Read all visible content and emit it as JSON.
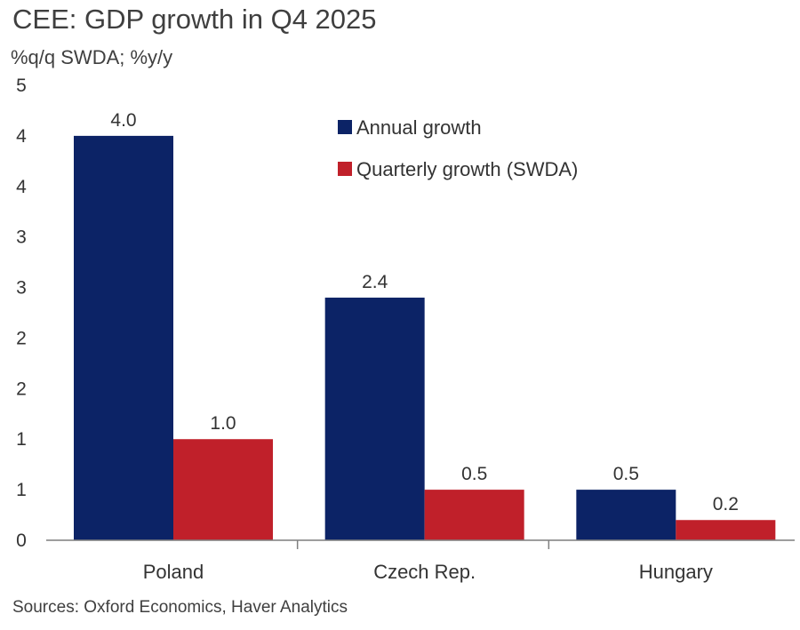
{
  "title": "CEE: GDP growth in Q4 2025",
  "subtitle": "%q/q SWDA; %y/y",
  "source": "Sources: Oxford Economics, Haver Analytics",
  "colors": {
    "annual": "#0c2366",
    "quarterly": "#c0202a",
    "axis": "#7f7f7f"
  },
  "chart_data": {
    "type": "bar",
    "categories": [
      "Poland",
      "Czech Rep.",
      "Hungary"
    ],
    "series": [
      {
        "name": "Annual growth",
        "values": [
          4.0,
          2.4,
          0.5
        ],
        "labels": [
          "4.0",
          "2.4",
          "0.5"
        ]
      },
      {
        "name": "Quarterly growth (SWDA)",
        "values": [
          1.0,
          0.5,
          0.2
        ],
        "labels": [
          "1.0",
          "0.5",
          "0.2"
        ]
      }
    ],
    "ylim": [
      0,
      4.5
    ],
    "yticks": [
      0,
      0.5,
      1,
      1.5,
      2,
      2.5,
      3,
      3.5,
      4,
      4.5
    ],
    "ytick_labels": [
      "0",
      "1",
      "1",
      "2",
      "2",
      "3",
      "3",
      "4",
      "4",
      "5"
    ],
    "legend": "top-right",
    "grid": false
  }
}
